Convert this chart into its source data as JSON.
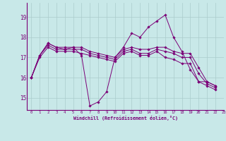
{
  "xlabel": "Windchill (Refroidissement éolien,°C)",
  "background_color": "#c8e8e8",
  "line_color": "#7b0077",
  "grid_color": "#aacccc",
  "xlim": [
    -0.5,
    23.0
  ],
  "ylim": [
    14.4,
    19.7
  ],
  "yticks": [
    15,
    16,
    17,
    18,
    19
  ],
  "xtick_labels": [
    "0",
    "1",
    "2",
    "3",
    "4",
    "5",
    "6",
    "7",
    "8",
    "9",
    "10",
    "11",
    "12",
    "13",
    "14",
    "15",
    "16",
    "17",
    "18",
    "19",
    "20",
    "21",
    "22",
    "23"
  ],
  "series1_x": [
    0,
    1,
    2,
    3,
    4,
    5,
    6,
    7,
    8,
    9,
    10,
    11,
    12,
    13,
    14,
    15,
    16,
    17,
    18,
    19,
    20,
    21,
    22
  ],
  "series1_y": [
    16.0,
    17.1,
    17.7,
    17.5,
    17.4,
    17.5,
    17.1,
    14.6,
    14.8,
    15.3,
    17.0,
    17.5,
    18.2,
    18.0,
    18.5,
    18.8,
    19.1,
    18.0,
    17.3,
    16.4,
    15.8,
    15.8,
    15.6
  ],
  "series2_x": [
    0,
    1,
    2,
    3,
    4,
    5,
    6,
    7,
    8,
    9,
    10,
    11,
    12,
    13,
    14,
    15,
    16,
    17,
    18,
    19,
    20,
    21,
    22
  ],
  "series2_y": [
    16.0,
    17.1,
    17.7,
    17.5,
    17.5,
    17.5,
    17.5,
    17.3,
    17.2,
    17.1,
    17.0,
    17.4,
    17.5,
    17.4,
    17.4,
    17.5,
    17.5,
    17.3,
    17.2,
    17.2,
    16.5,
    15.8,
    15.6
  ],
  "series3_x": [
    0,
    1,
    2,
    3,
    4,
    5,
    6,
    7,
    8,
    9,
    10,
    11,
    12,
    13,
    14,
    15,
    16,
    17,
    18,
    19,
    20,
    21,
    22
  ],
  "series3_y": [
    16.0,
    17.1,
    17.6,
    17.4,
    17.4,
    17.4,
    17.4,
    17.2,
    17.1,
    17.0,
    16.9,
    17.3,
    17.4,
    17.2,
    17.2,
    17.4,
    17.3,
    17.2,
    17.0,
    17.0,
    16.2,
    15.7,
    15.5
  ],
  "series4_x": [
    0,
    1,
    2,
    3,
    4,
    5,
    6,
    7,
    8,
    9,
    10,
    11,
    12,
    13,
    14,
    15,
    16,
    17,
    18,
    19,
    20,
    21,
    22
  ],
  "series4_y": [
    16.0,
    17.0,
    17.5,
    17.3,
    17.3,
    17.3,
    17.2,
    17.1,
    17.0,
    16.9,
    16.8,
    17.2,
    17.3,
    17.1,
    17.1,
    17.3,
    17.0,
    16.9,
    16.7,
    16.7,
    15.8,
    15.6,
    15.4
  ]
}
